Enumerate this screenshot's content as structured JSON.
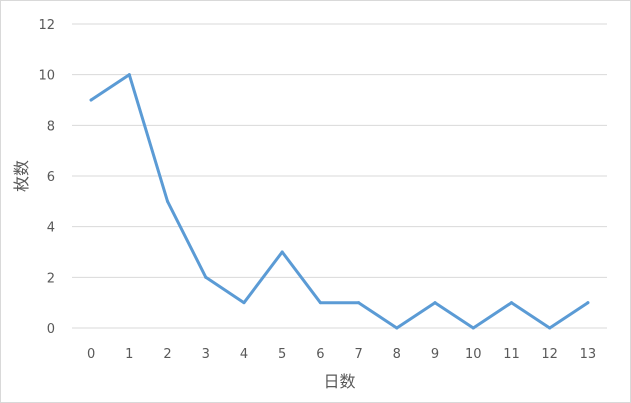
{
  "chart_data": {
    "type": "line",
    "title": "",
    "xlabel": "日数",
    "ylabel": "枚数",
    "categories": [
      "0",
      "1",
      "2",
      "3",
      "4",
      "5",
      "6",
      "7",
      "8",
      "9",
      "10",
      "11",
      "12",
      "13"
    ],
    "series": [
      {
        "values": [
          9,
          10,
          5,
          2,
          1,
          3,
          1,
          1,
          0,
          1,
          0,
          1,
          0,
          1
        ],
        "color": "#5b9bd5"
      }
    ],
    "ylim": [
      0,
      12
    ],
    "yticks": [
      "0",
      "2",
      "4",
      "6",
      "8",
      "10",
      "12"
    ],
    "grid": true,
    "legend": "none"
  }
}
